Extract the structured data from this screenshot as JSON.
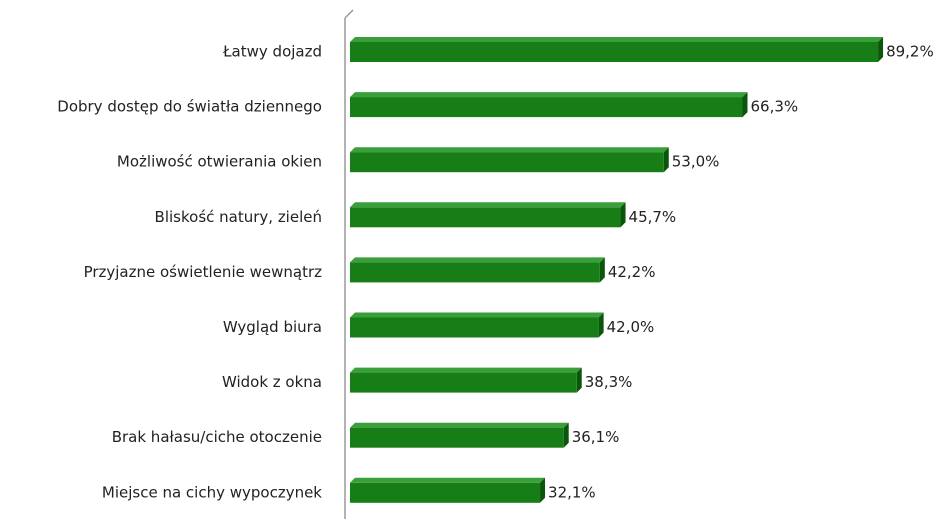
{
  "chart_data": {
    "type": "bar",
    "orientation": "horizontal",
    "categories": [
      "Łatwy dojazd",
      "Dobry dostęp do światła dziennego",
      "Możliwość otwierania okien",
      "Bliskość natury, zieleń",
      "Przyjazne oświetlenie wewnątrz",
      "Wygląd biura",
      "Widok z okna",
      "Brak hałasu/ciche otoczenie",
      "Miejsce na cichy wypoczynek"
    ],
    "values": [
      89.2,
      66.3,
      53.0,
      45.7,
      42.2,
      42.0,
      38.3,
      36.1,
      32.1
    ],
    "value_labels": [
      "89,2%",
      "66,3%",
      "53,0%",
      "45,7%",
      "42,2%",
      "42,0%",
      "38,3%",
      "36,1%",
      "32,1%"
    ],
    "color": "#177d17",
    "xlim": [
      0,
      100
    ]
  }
}
